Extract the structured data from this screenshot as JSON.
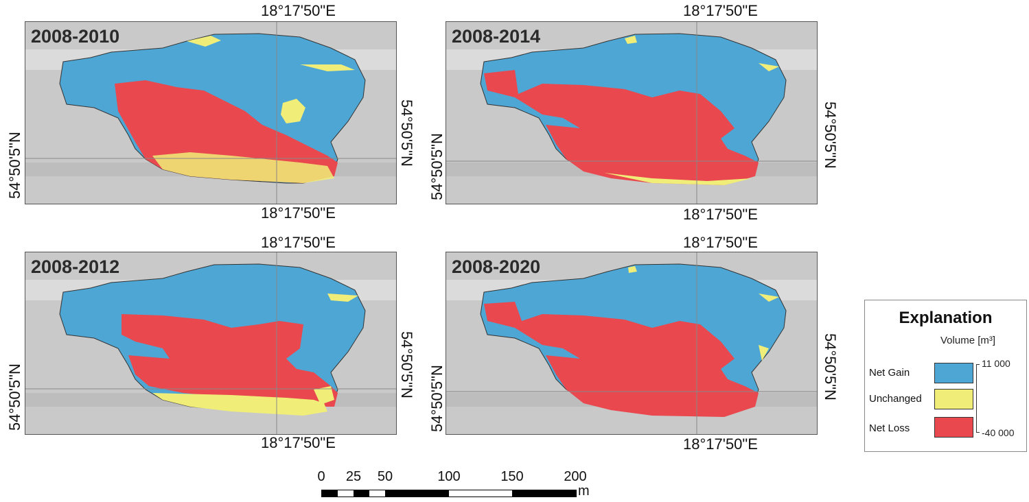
{
  "panels": [
    {
      "period": "2008-2010",
      "coord_top": "18°17'50\"E",
      "coord_bottom": "18°17'50\"E",
      "coord_left": "54°50'5\"N",
      "coord_right": "54°50'5\"N"
    },
    {
      "period": "2008-2014",
      "coord_top": "18°17'50\"E",
      "coord_bottom": "18°17'50\"E",
      "coord_left": "54°50'5\"N",
      "coord_right": "54°50'5\"N"
    },
    {
      "period": "2008-2012",
      "coord_top": "18°17'50\"E",
      "coord_bottom": "18°17'50\"E",
      "coord_left": "54°50'5\"N",
      "coord_right": "54°50'5\"N"
    },
    {
      "period": "2008-2020",
      "coord_top": "18°17'50\"E",
      "coord_bottom": "18°17'50\"E",
      "coord_left": "54°50'5\"N",
      "coord_right": "54°50'5\"N"
    }
  ],
  "legend": {
    "title": "Explanation",
    "subtitle": "Volume [m³]",
    "items": [
      {
        "label": "Net Gain",
        "color": "#4ea6d4"
      },
      {
        "label": "Unchanged",
        "color": "#f0ee78"
      },
      {
        "label": "Net Loss",
        "color": "#e8484e"
      }
    ],
    "scale_max": "11 000",
    "scale_min": "-40 000"
  },
  "scalebar": {
    "labels": [
      "0",
      "25",
      "50",
      "100",
      "150",
      "200"
    ],
    "unit": "m"
  },
  "colors": {
    "gain": "#4ea6d4",
    "unchanged": "#f0ee78",
    "loss": "#e8484e",
    "hillshade": "#c9c9c9"
  }
}
